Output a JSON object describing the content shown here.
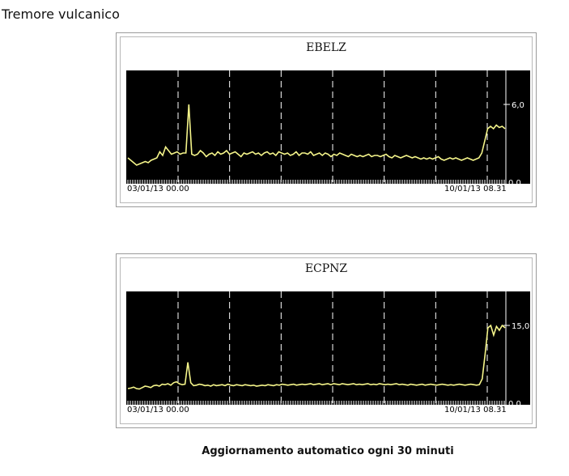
{
  "page": {
    "title": "Tremore vulcanico",
    "footer": "Aggiornamento automatico ogni 30 minuti"
  },
  "chart_data": [
    {
      "type": "line",
      "title": "EBELZ",
      "x_start_label": "03/01/13 00.00",
      "x_end_label": "10/01/13 08.31",
      "y_tick_labels": [
        "6,0",
        "0,0"
      ],
      "ylim": [
        0,
        8
      ],
      "day_markers": 7,
      "background": "#000000",
      "line_color": "#f5f58a",
      "grid_color": "#ffffff",
      "series": [
        {
          "values": [
            1.6,
            1.4,
            1.2,
            1.0,
            1.1,
            1.2,
            1.3,
            1.2,
            1.4,
            1.5,
            1.6,
            2.1,
            1.8,
            2.5,
            2.2,
            1.9,
            2.0,
            2.1,
            1.9,
            2.0,
            2.0,
            6.0,
            1.9,
            1.8,
            1.9,
            2.2,
            2.0,
            1.7,
            1.9,
            2.0,
            1.8,
            2.1,
            1.9,
            2.0,
            2.2,
            1.9,
            2.0,
            2.1,
            1.9,
            1.7,
            2.0,
            1.9,
            2.0,
            2.1,
            1.9,
            2.0,
            1.8,
            2.0,
            2.1,
            1.9,
            2.0,
            1.8,
            2.1,
            2.0,
            1.9,
            2.0,
            1.8,
            1.9,
            2.1,
            1.8,
            2.0,
            2.0,
            1.9,
            2.1,
            1.8,
            1.9,
            2.0,
            1.8,
            2.0,
            1.9,
            1.7,
            1.9,
            1.8,
            2.0,
            1.9,
            1.8,
            1.7,
            1.9,
            1.8,
            1.7,
            1.8,
            1.7,
            1.8,
            1.9,
            1.7,
            1.8,
            1.8,
            1.7,
            1.8,
            1.9,
            1.7,
            1.6,
            1.8,
            1.7,
            1.6,
            1.7,
            1.8,
            1.7,
            1.6,
            1.7,
            1.6,
            1.5,
            1.6,
            1.5,
            1.6,
            1.5,
            1.6,
            1.7,
            1.5,
            1.4,
            1.5,
            1.6,
            1.5,
            1.6,
            1.5,
            1.4,
            1.5,
            1.6,
            1.5,
            1.4,
            1.5,
            1.6,
            2.0,
            3.0,
            4.0,
            4.2,
            4.0,
            4.3,
            4.1,
            4.2,
            4.0
          ]
        }
      ]
    },
    {
      "type": "line",
      "title": "ECPNZ",
      "x_start_label": "03/01/13 00.00",
      "x_end_label": "10/01/13 08.31",
      "y_tick_labels": [
        "15,0",
        "0,0"
      ],
      "ylim": [
        0,
        20
      ],
      "day_markers": 7,
      "background": "#000000",
      "line_color": "#f5f58a",
      "grid_color": "#ffffff",
      "series": [
        {
          "values": [
            2.0,
            2.1,
            2.3,
            2.0,
            1.9,
            2.2,
            2.5,
            2.4,
            2.2,
            2.6,
            2.7,
            2.5,
            2.9,
            2.8,
            3.0,
            2.7,
            3.2,
            3.4,
            3.0,
            2.8,
            2.9,
            7.4,
            3.2,
            2.6,
            2.7,
            2.9,
            2.8,
            2.6,
            2.7,
            2.5,
            2.8,
            2.6,
            2.7,
            2.8,
            2.6,
            2.9,
            2.7,
            2.6,
            2.8,
            2.7,
            2.6,
            2.8,
            2.7,
            2.6,
            2.7,
            2.5,
            2.6,
            2.7,
            2.6,
            2.8,
            2.7,
            2.6,
            2.8,
            2.7,
            2.9,
            2.8,
            2.7,
            2.8,
            2.9,
            2.7,
            2.8,
            2.9,
            2.8,
            2.9,
            3.0,
            2.8,
            2.9,
            3.0,
            2.8,
            2.9,
            3.0,
            2.8,
            3.0,
            2.9,
            2.8,
            3.0,
            2.9,
            2.8,
            2.9,
            3.0,
            2.8,
            2.9,
            2.8,
            2.9,
            3.0,
            2.8,
            2.9,
            2.8,
            3.0,
            2.9,
            2.8,
            2.9,
            2.8,
            2.9,
            3.0,
            2.8,
            2.9,
            2.8,
            2.7,
            2.9,
            2.8,
            2.7,
            2.8,
            2.9,
            2.7,
            2.8,
            2.9,
            2.8,
            2.7,
            2.8,
            2.9,
            2.8,
            2.7,
            2.8,
            2.7,
            2.8,
            2.9,
            2.8,
            2.7,
            2.8,
            2.9,
            2.8,
            2.7,
            2.8,
            4.0,
            9.0,
            14.5,
            15.0,
            13.0,
            14.8,
            14.0,
            15.0,
            14.5
          ]
        }
      ]
    }
  ]
}
